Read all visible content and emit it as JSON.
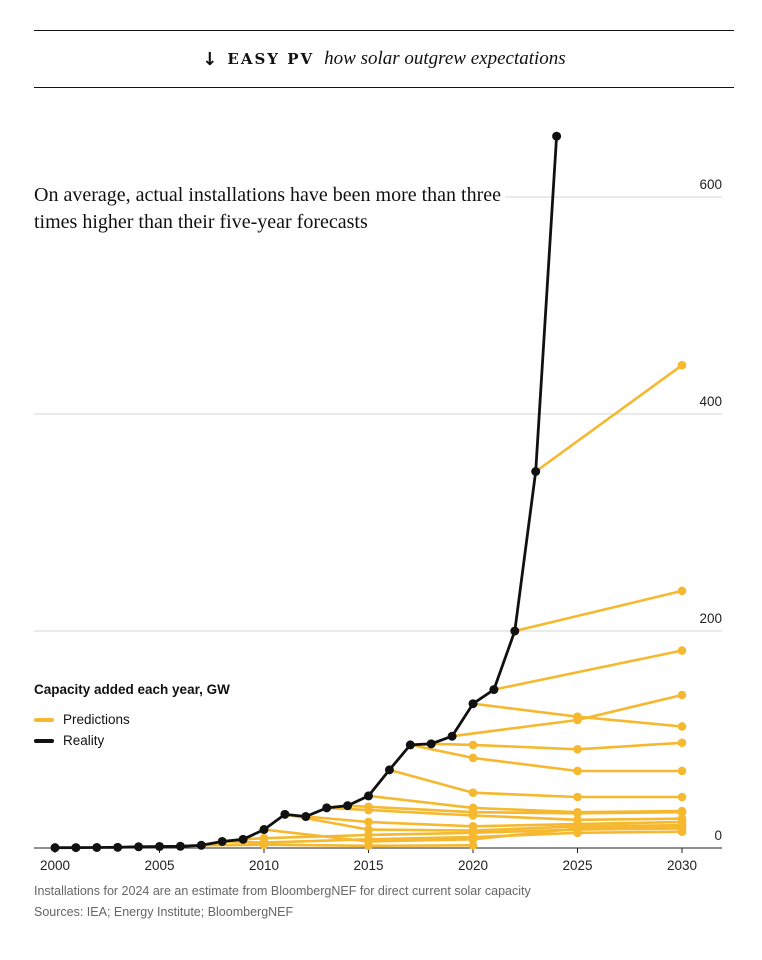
{
  "header": {
    "arrow": "↓",
    "brand": "EASY PV",
    "tagline": "how solar outgrew expectations"
  },
  "headline": "On average, actual installations have been more than three times higher than their five-year forecasts",
  "legend": {
    "title": "Capacity added each year, GW",
    "items": [
      {
        "label": "Predictions",
        "color": "#f5b82e"
      },
      {
        "label": "Reality",
        "color": "#111111"
      }
    ]
  },
  "footnotes": {
    "note": "Installations for 2024 are an estimate from BloombergNEF for direct current solar capacity",
    "sources": "Sources: IEA; Energy Institute; BloombergNEF"
  },
  "chart_data": {
    "type": "line",
    "title": "",
    "xlabel": "",
    "ylabel": "Capacity added each year, GW",
    "xlim": [
      2000,
      2030
    ],
    "ylim": [
      0,
      650
    ],
    "x_ticks": [
      2000,
      2005,
      2010,
      2015,
      2020,
      2025,
      2030
    ],
    "y_ticks": [
      0,
      200,
      400,
      600
    ],
    "grid": "horizontal",
    "y_axis_side": "right",
    "colors": {
      "predictions": "#f5b82e",
      "reality": "#111111"
    },
    "series": [
      {
        "name": "Reality",
        "type": "actual",
        "points": [
          [
            2000,
            0.3
          ],
          [
            2001,
            0.4
          ],
          [
            2002,
            0.5
          ],
          [
            2003,
            0.6
          ],
          [
            2004,
            1.1
          ],
          [
            2005,
            1.4
          ],
          [
            2006,
            1.6
          ],
          [
            2007,
            2.5
          ],
          [
            2008,
            6
          ],
          [
            2009,
            8
          ],
          [
            2010,
            17
          ],
          [
            2011,
            31
          ],
          [
            2012,
            29
          ],
          [
            2013,
            37
          ],
          [
            2014,
            39
          ],
          [
            2015,
            48
          ],
          [
            2016,
            72
          ],
          [
            2017,
            95
          ],
          [
            2018,
            96
          ],
          [
            2019,
            103
          ],
          [
            2020,
            133
          ],
          [
            2021,
            146
          ],
          [
            2022,
            200
          ],
          [
            2023,
            347
          ],
          [
            2024,
            656
          ]
        ]
      },
      {
        "type": "prediction",
        "points": [
          [
            2007,
            2.5
          ],
          [
            2010,
            3
          ],
          [
            2015,
            2
          ],
          [
            2020,
            2.5
          ]
        ]
      },
      {
        "type": "prediction",
        "points": [
          [
            2008,
            6
          ],
          [
            2010,
            5
          ],
          [
            2015,
            8
          ],
          [
            2020,
            10
          ],
          [
            2025,
            14
          ],
          [
            2030,
            15
          ]
        ]
      },
      {
        "type": "prediction",
        "points": [
          [
            2009,
            8
          ],
          [
            2010,
            9
          ],
          [
            2015,
            12
          ],
          [
            2020,
            14
          ],
          [
            2025,
            17
          ],
          [
            2030,
            18
          ]
        ]
      },
      {
        "type": "prediction",
        "points": [
          [
            2010,
            17
          ],
          [
            2015,
            6
          ],
          [
            2020,
            8
          ],
          [
            2025,
            18
          ],
          [
            2030,
            20
          ]
        ]
      },
      {
        "type": "prediction",
        "points": [
          [
            2011,
            31
          ],
          [
            2015,
            17
          ],
          [
            2020,
            16
          ],
          [
            2025,
            20
          ],
          [
            2030,
            21
          ]
        ]
      },
      {
        "type": "prediction",
        "points": [
          [
            2012,
            29
          ],
          [
            2015,
            24
          ],
          [
            2020,
            20
          ],
          [
            2025,
            22
          ],
          [
            2030,
            24
          ]
        ]
      },
      {
        "type": "prediction",
        "points": [
          [
            2013,
            37
          ],
          [
            2015,
            35
          ],
          [
            2020,
            30
          ],
          [
            2025,
            26
          ],
          [
            2030,
            27
          ]
        ]
      },
      {
        "type": "prediction",
        "points": [
          [
            2014,
            39
          ],
          [
            2015,
            38
          ],
          [
            2020,
            33
          ],
          [
            2025,
            32
          ],
          [
            2030,
            33
          ]
        ]
      },
      {
        "type": "prediction",
        "points": [
          [
            2015,
            48
          ],
          [
            2020,
            37
          ],
          [
            2025,
            33
          ],
          [
            2030,
            34
          ]
        ]
      },
      {
        "type": "prediction",
        "points": [
          [
            2016,
            72
          ],
          [
            2020,
            51
          ],
          [
            2025,
            47
          ],
          [
            2030,
            47
          ]
        ]
      },
      {
        "type": "prediction",
        "points": [
          [
            2017,
            95
          ],
          [
            2020,
            83
          ],
          [
            2025,
            71
          ],
          [
            2030,
            71
          ]
        ]
      },
      {
        "type": "prediction",
        "points": [
          [
            2018,
            96
          ],
          [
            2020,
            95
          ],
          [
            2025,
            91
          ],
          [
            2030,
            97
          ]
        ]
      },
      {
        "type": "prediction",
        "points": [
          [
            2019,
            103
          ],
          [
            2025,
            118
          ],
          [
            2030,
            141
          ]
        ]
      },
      {
        "type": "prediction",
        "points": [
          [
            2020,
            133
          ],
          [
            2025,
            121
          ],
          [
            2030,
            112
          ]
        ]
      },
      {
        "type": "prediction",
        "points": [
          [
            2021,
            146
          ],
          [
            2030,
            182
          ]
        ]
      },
      {
        "type": "prediction",
        "points": [
          [
            2022,
            200
          ],
          [
            2030,
            237
          ]
        ]
      },
      {
        "type": "prediction",
        "points": [
          [
            2023,
            347
          ],
          [
            2030,
            445
          ]
        ]
      }
    ]
  }
}
